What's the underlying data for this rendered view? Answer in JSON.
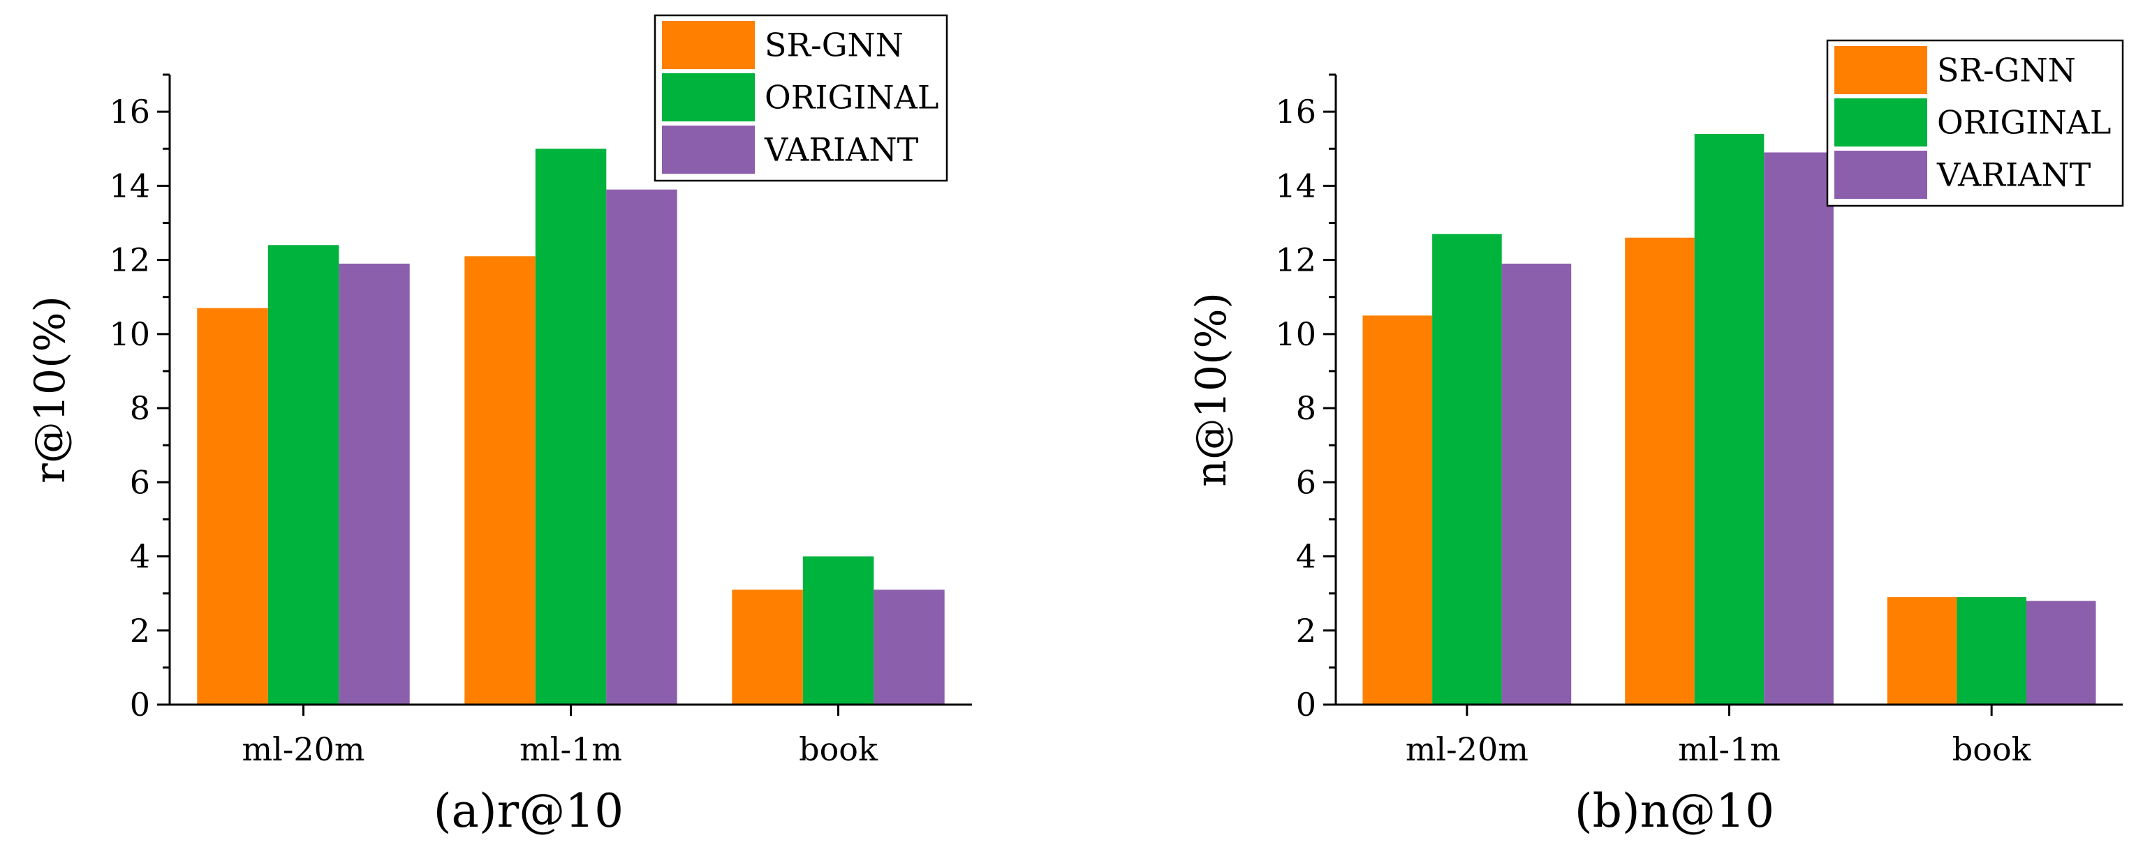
{
  "colors": {
    "SR-GNN": "#ff8000",
    "ORIGINAL": "#00b33c",
    "VARIANT": "#8c5fad"
  },
  "chart_data": [
    {
      "type": "bar",
      "caption": "(a)r@10",
      "ylabel": "r@10(%)",
      "xlabel": "",
      "categories": [
        "ml-20m",
        "ml-1m",
        "book"
      ],
      "ylim": [
        0,
        17
      ],
      "yticks": [
        0,
        2,
        4,
        6,
        8,
        10,
        12,
        14,
        16
      ],
      "legend_position": "top-right",
      "series": [
        {
          "name": "SR-GNN",
          "values": [
            10.7,
            12.1,
            3.1
          ]
        },
        {
          "name": "ORIGINAL",
          "values": [
            12.4,
            15.0,
            4.0
          ]
        },
        {
          "name": "VARIANT",
          "values": [
            11.9,
            13.9,
            3.1
          ]
        }
      ]
    },
    {
      "type": "bar",
      "caption": "(b)n@10",
      "ylabel": "n@10(%)",
      "xlabel": "",
      "categories": [
        "ml-20m",
        "ml-1m",
        "book"
      ],
      "ylim": [
        0,
        17
      ],
      "yticks": [
        0,
        2,
        4,
        6,
        8,
        10,
        12,
        14,
        16
      ],
      "legend_position": "top-right",
      "series": [
        {
          "name": "SR-GNN",
          "values": [
            10.5,
            12.6,
            2.9
          ]
        },
        {
          "name": "ORIGINAL",
          "values": [
            12.7,
            15.4,
            2.9
          ]
        },
        {
          "name": "VARIANT",
          "values": [
            11.9,
            14.9,
            2.8
          ]
        }
      ]
    }
  ]
}
